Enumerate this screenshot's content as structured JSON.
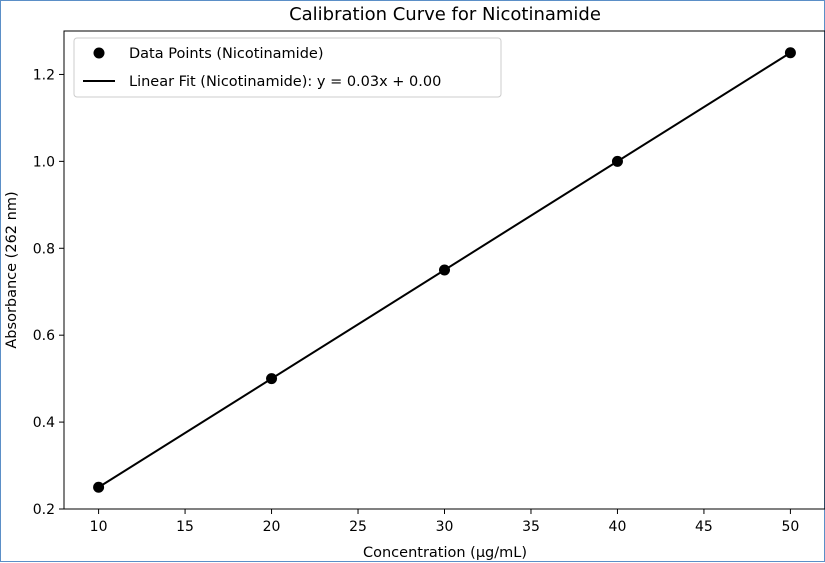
{
  "chart_data": {
    "type": "scatter",
    "title": "Calibration Curve for Nicotinamide",
    "xlabel": "Concentration (µg/mL)",
    "ylabel": "Absorbance (262 nm)",
    "xlim": [
      8,
      52
    ],
    "ylim": [
      0.2,
      1.3
    ],
    "xticks": [
      10,
      15,
      20,
      25,
      30,
      35,
      40,
      45,
      50
    ],
    "yticks": [
      0.2,
      0.4,
      0.6,
      0.8,
      1.0,
      1.2
    ],
    "xtick_labels": [
      "10",
      "15",
      "20",
      "25",
      "30",
      "35",
      "40",
      "45",
      "50"
    ],
    "ytick_labels": [
      "0.2",
      "0.4",
      "0.6",
      "0.8",
      "1.0",
      "1.2"
    ],
    "grid": false,
    "legend_position": "top-left",
    "series": [
      {
        "name": "Data Points (Nicotinamide)",
        "kind": "scatter",
        "color": "#000000",
        "x": [
          10,
          20,
          30,
          40,
          50
        ],
        "y": [
          0.25,
          0.5,
          0.75,
          1.0,
          1.25
        ]
      },
      {
        "name": "Linear Fit (Nicotinamide): y = 0.03x + 0.00",
        "kind": "line",
        "color": "#000000",
        "x": [
          10,
          50
        ],
        "y": [
          0.25,
          1.25
        ]
      }
    ]
  }
}
